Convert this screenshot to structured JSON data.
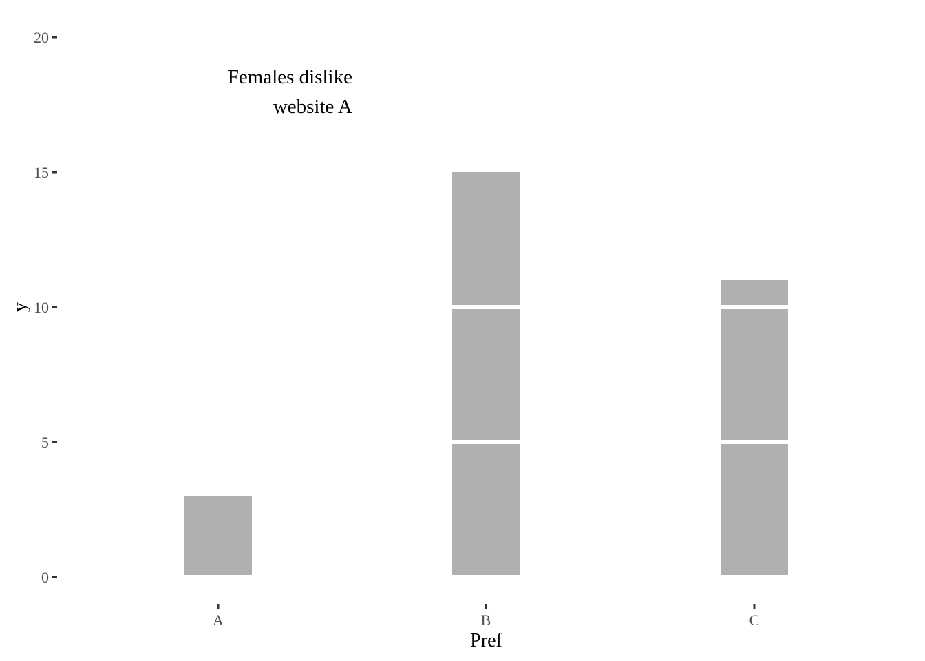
{
  "chart_data": {
    "type": "bar",
    "categories": [
      "A",
      "B",
      "C"
    ],
    "values": [
      3,
      15,
      11
    ],
    "segment_size": 5,
    "bar_color": "#b0b0b0",
    "separator_color": "#ffffff",
    "tick_color": "#333333",
    "xlabel": "Pref",
    "ylabel": "y",
    "ylim": [
      0,
      20
    ],
    "yticks": [
      0,
      5,
      10,
      15,
      20
    ],
    "yticks_labels": [
      "0",
      "5",
      "10",
      "15",
      "20"
    ],
    "grid": false,
    "annotation": {
      "lines": [
        "Females dislike",
        "website A"
      ],
      "anchor_category": "A",
      "anchor_y": 18
    }
  }
}
